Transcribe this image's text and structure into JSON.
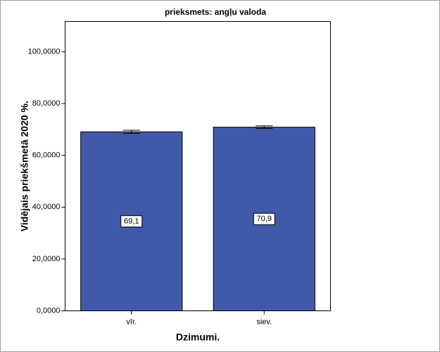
{
  "chart_data": {
    "type": "bar",
    "title": "prieksmets: angļu valoda",
    "x_label": "Dzimumi.",
    "y_label": "Vidējais priekšmetā 2020 %.",
    "categories": [
      "vīr.",
      "siev."
    ],
    "values": [
      69.1,
      70.9
    ],
    "value_labels": [
      "69,1",
      "70,9"
    ],
    "errors": [
      0.6,
      0.5
    ],
    "color": "#4059a9",
    "ylim": [
      0,
      111.7
    ],
    "yticks": [
      {
        "value": 0,
        "label": "0,0000"
      },
      {
        "value": 20,
        "label": "20,0000"
      },
      {
        "value": 40,
        "label": "40,0000"
      },
      {
        "value": 60,
        "label": "60,0000"
      },
      {
        "value": 80,
        "label": "80,0000"
      },
      {
        "value": 100,
        "label": "100,0000"
      }
    ],
    "grid": false
  }
}
